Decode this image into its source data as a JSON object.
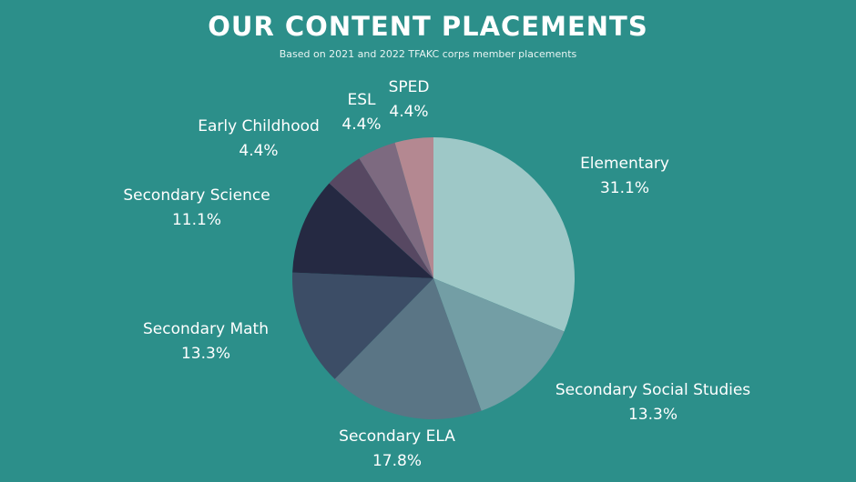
{
  "header": {
    "title": "OUR CONTENT PLACEMENTS",
    "subtitle": "Based on 2021 and 2022 TFAKC corps member placements"
  },
  "colors": {
    "background": "#2c8f8a"
  },
  "chart_data": {
    "type": "pie",
    "title": "OUR CONTENT PLACEMENTS",
    "subtitle": "Based on 2021 and 2022 TFAKC corps member placements",
    "start": "12 o'clock, clockwise",
    "legend": "none (direct labels)",
    "slices": [
      {
        "label": "Elementary",
        "value": 31.1,
        "display": "31.1%",
        "color": "#9ec8c7"
      },
      {
        "label": "Secondary Social Studies",
        "value": 13.3,
        "display": "13.3%",
        "color": "#739ea5"
      },
      {
        "label": "Secondary ELA",
        "value": 17.8,
        "display": "17.8%",
        "color": "#5a7585"
      },
      {
        "label": "Secondary Math",
        "value": 13.3,
        "display": "13.3%",
        "color": "#3c4d66"
      },
      {
        "label": "Secondary Science",
        "value": 11.1,
        "display": "11.1%",
        "color": "#252942"
      },
      {
        "label": "Early Childhood",
        "value": 4.4,
        "display": "4.4%",
        "color": "#574862"
      },
      {
        "label": "ESL",
        "value": 4.4,
        "display": "4.4%",
        "color": "#7d6a80"
      },
      {
        "label": "SPED",
        "value": 4.4,
        "display": "4.4%",
        "color": "#b48891"
      }
    ]
  }
}
